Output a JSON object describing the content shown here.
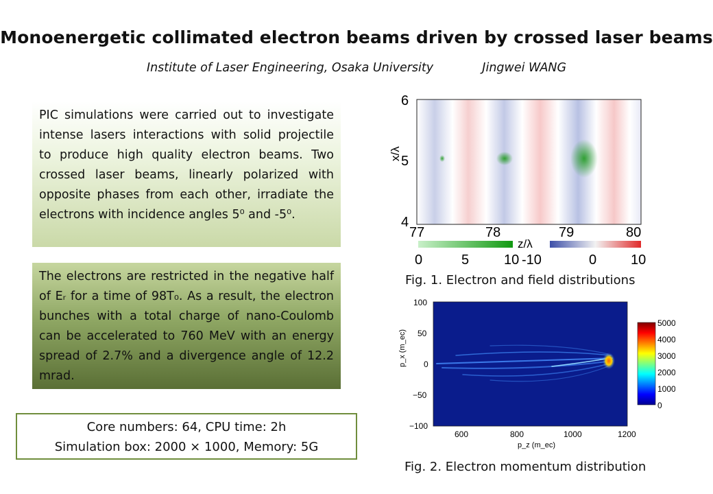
{
  "title": "Monoenergetic collimated electron beams driven by crossed laser beams",
  "affiliation": "Institute of Laser Engineering, Osaka University",
  "author": "Jingwei WANG",
  "text_box_1": "PIC simulations were carried out to investigate intense lasers interactions with solid projectile to produce high quality electron beams. Two crossed laser beams, linearly polarized with opposite phases from each other, irradiate the electrons with incidence angles 5⁰ and -5⁰.",
  "text_box_2": "The electrons are restricted in the negative half of Eᵣ for a time of 98T₀. As a result, the electron bunches with a total charge of nano-Coulomb can be accelerated to 760 MeV with an energy spread of 2.7% and a divergence angle of 12.2 mrad.",
  "info_box": {
    "line1": "Core numbers: 64, CPU time: 2h",
    "line2": "Simulation box: 2000 × 1000, Memory: 5G"
  },
  "figure1": {
    "caption": "Fig. 1. Electron  and  field distributions",
    "xlabel": "z/λ",
    "ylabel": "x/λ",
    "x_ticks": [
      "77",
      "78",
      "79",
      "80"
    ],
    "y_ticks": [
      "6",
      "5",
      "4"
    ],
    "colorbar_electron_ticks": [
      "0",
      "5",
      "10"
    ],
    "colorbar_field_ticks": [
      "-10",
      "0",
      "10"
    ],
    "colors": {
      "field_positive": "#f08a8a",
      "field_negative": "#7f8fc8",
      "electron": "#22aa22"
    }
  },
  "figure2": {
    "caption": "Fig. 2. Electron momentum distribution",
    "xlabel": "p_z (m_ec)",
    "ylabel": "p_x (m_ec)",
    "x_ticks": [
      "600",
      "800",
      "1000",
      "1200"
    ],
    "y_ticks": [
      "100",
      "50",
      "0",
      "−50",
      "−100"
    ],
    "colorbar_ticks": [
      "5000",
      "4000",
      "3000",
      "2000",
      "1000",
      "0"
    ],
    "colors": {
      "background": "#0a1c8c"
    }
  },
  "chart_data": [
    {
      "type": "heatmap",
      "title": "",
      "xlabel": "z/λ",
      "ylabel": "x/λ",
      "xlim": [
        77,
        80
      ],
      "ylim": [
        4,
        6
      ],
      "series": [
        {
          "name": "",
          "x": [
            78.15,
            79.25
          ],
          "y": [
            5.0,
            5.0
          ]
        }
      ],
      "colorbar_ranges": [
        [
          0,
          10
        ],
        [
          -10,
          10
        ]
      ]
    },
    {
      "type": "heatmap",
      "title": "",
      "xlabel": "p_z (m_ec)",
      "ylabel": "p_x (m_ec)",
      "xlim": [
        500,
        1200
      ],
      "ylim": [
        -100,
        100
      ],
      "colorbar_range": [
        0,
        5000
      ]
    }
  ]
}
